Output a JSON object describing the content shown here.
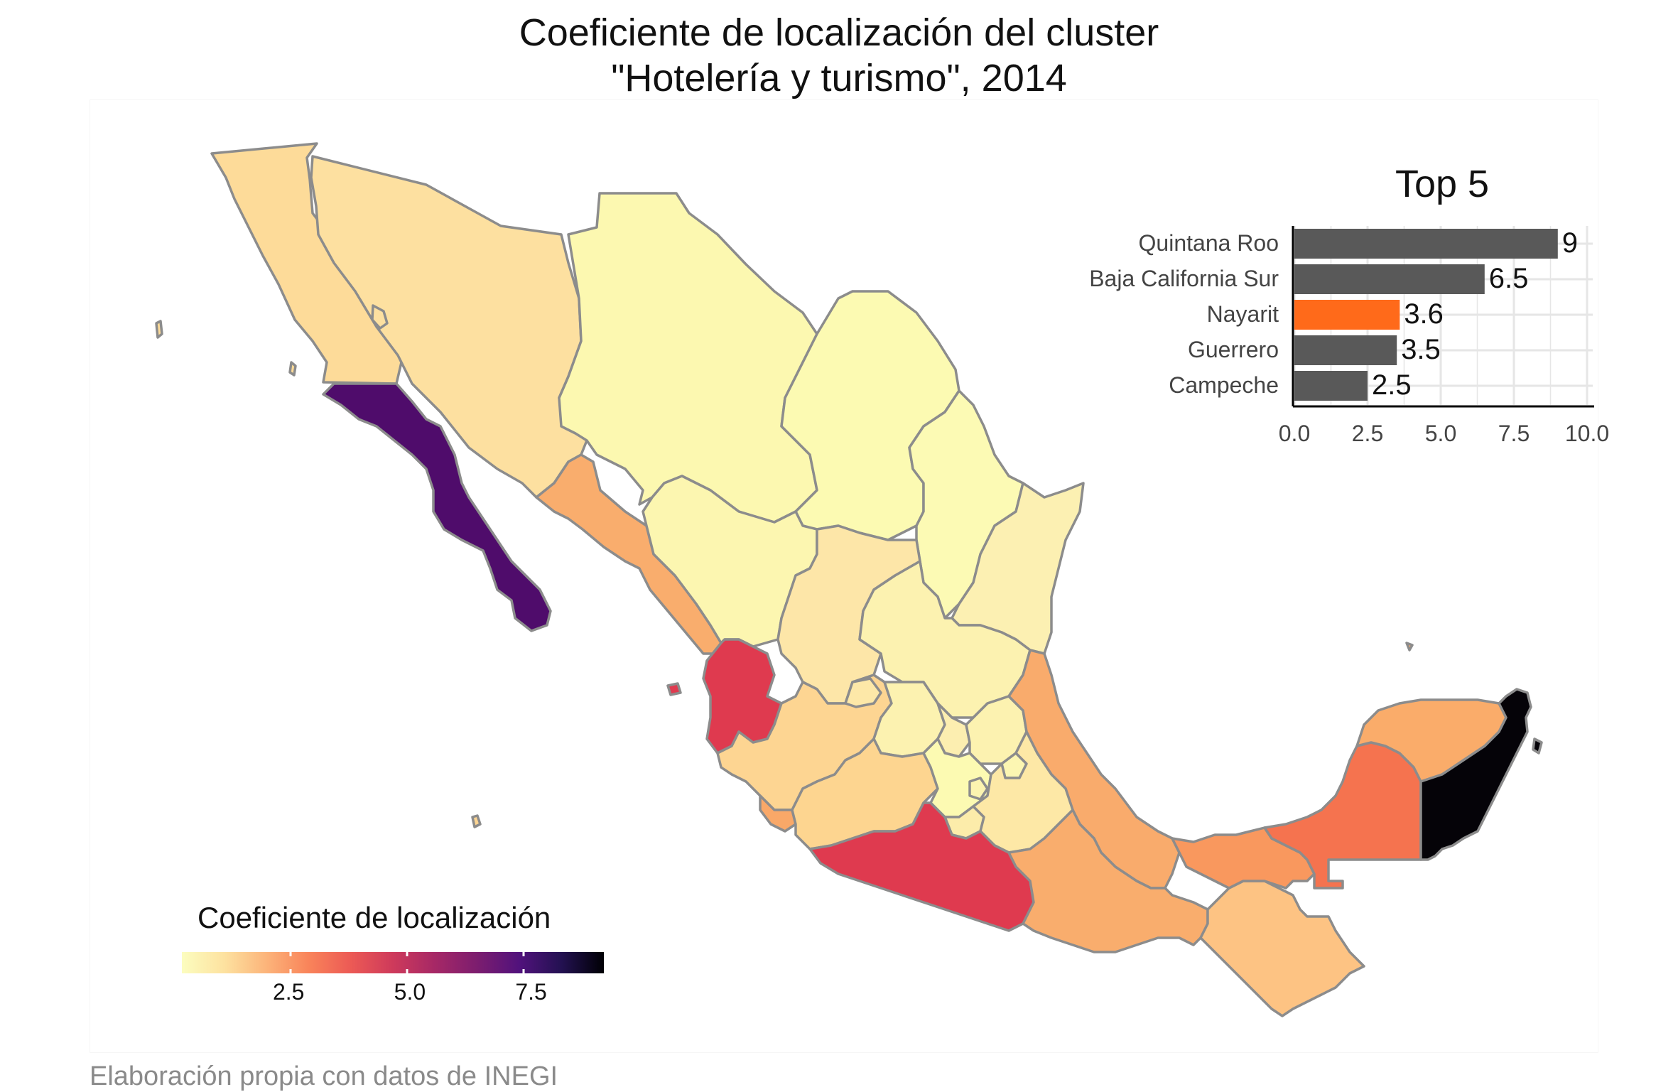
{
  "title_line1": "Coeficiente de localización del cluster",
  "title_line2": "\"Hotelería y turismo\", 2014",
  "caption": "Elaboración propia con datos de INEGI",
  "colors": {
    "state_border": "#8c8c8c",
    "bar_default": "#595959",
    "bar_highlight": "#ff6a1a",
    "scale_low": "#fcfdbf",
    "scale_high": "#000004"
  },
  "legend": {
    "title": "Coeficiente de localización",
    "ticks": [
      {
        "label": "2.5",
        "value": 2.5
      },
      {
        "label": "5.0",
        "value": 5.0
      },
      {
        "label": "7.5",
        "value": 7.5
      }
    ],
    "range": [
      0.3,
      9
    ]
  },
  "inset": {
    "title": "Top 5",
    "x_ticks": [
      "0.0",
      "2.5",
      "5.0",
      "7.5",
      "10.0"
    ],
    "x_range": [
      0,
      10
    ],
    "bars": [
      {
        "state": "Quintana Roo",
        "value": 9,
        "label": "9",
        "highlight": false
      },
      {
        "state": "Baja California Sur",
        "value": 6.5,
        "label": "6.5",
        "highlight": false
      },
      {
        "state": "Nayarit",
        "value": 3.6,
        "label": "3.6",
        "highlight": true
      },
      {
        "state": "Guerrero",
        "value": 3.5,
        "label": "3.5",
        "highlight": false
      },
      {
        "state": "Campeche",
        "value": 2.5,
        "label": "2.5",
        "highlight": false
      }
    ]
  },
  "chart_data": {
    "type": "bar",
    "title": "Top 5",
    "categories": [
      "Quintana Roo",
      "Baja California Sur",
      "Nayarit",
      "Guerrero",
      "Campeche"
    ],
    "values": [
      9,
      6.5,
      3.6,
      3.5,
      2.5
    ],
    "xlim": [
      0,
      10
    ],
    "orientation": "horizontal",
    "highlighted": "Nayarit"
  },
  "states": [
    {
      "key": "baja-california",
      "color": "#fddb99"
    },
    {
      "key": "sonora",
      "color": "#fde0a0"
    },
    {
      "key": "chihuahua",
      "color": "#fcf8b0"
    },
    {
      "key": "coahuila",
      "color": "#fcfab2"
    },
    {
      "key": "nuevo-leon",
      "color": "#fcfab4"
    },
    {
      "key": "tamaulipas",
      "color": "#fcf0b2"
    },
    {
      "key": "baja-california-sur",
      "color": "#4f0c6b"
    },
    {
      "key": "sinaloa",
      "color": "#f9ad6d"
    },
    {
      "key": "durango",
      "color": "#fcf6b0"
    },
    {
      "key": "zacatecas",
      "color": "#fde6a8"
    },
    {
      "key": "san-luis-potosi",
      "color": "#fcf2b0"
    },
    {
      "key": "nayarit",
      "color": "#df3a4f"
    },
    {
      "key": "jalisco",
      "color": "#fdd592"
    },
    {
      "key": "aguascalientes",
      "color": "#fde8a8"
    },
    {
      "key": "guanajuato",
      "color": "#fcf2b0"
    },
    {
      "key": "queretaro",
      "color": "#fceeb0"
    },
    {
      "key": "hidalgo",
      "color": "#fcf2b0"
    },
    {
      "key": "veracruz",
      "color": "#f9ab6c"
    },
    {
      "key": "colima",
      "color": "#f9a868"
    },
    {
      "key": "michoacan",
      "color": "#fdd590"
    },
    {
      "key": "mexico",
      "color": "#fcfab2"
    },
    {
      "key": "cdmx",
      "color": "#fcf4b0"
    },
    {
      "key": "morelos",
      "color": "#fcecaa"
    },
    {
      "key": "tlaxcala",
      "color": "#fcf6b2"
    },
    {
      "key": "puebla",
      "color": "#fde8a6"
    },
    {
      "key": "guerrero",
      "color": "#df3a4f"
    },
    {
      "key": "oaxaca",
      "color": "#f9ad6d"
    },
    {
      "key": "chiapas",
      "color": "#fdc383"
    },
    {
      "key": "tabasco",
      "color": "#f9985e"
    },
    {
      "key": "campeche",
      "color": "#f5734f"
    },
    {
      "key": "yucatan",
      "color": "#faac6a"
    },
    {
      "key": "quintana-roo",
      "color": "#050308"
    }
  ]
}
